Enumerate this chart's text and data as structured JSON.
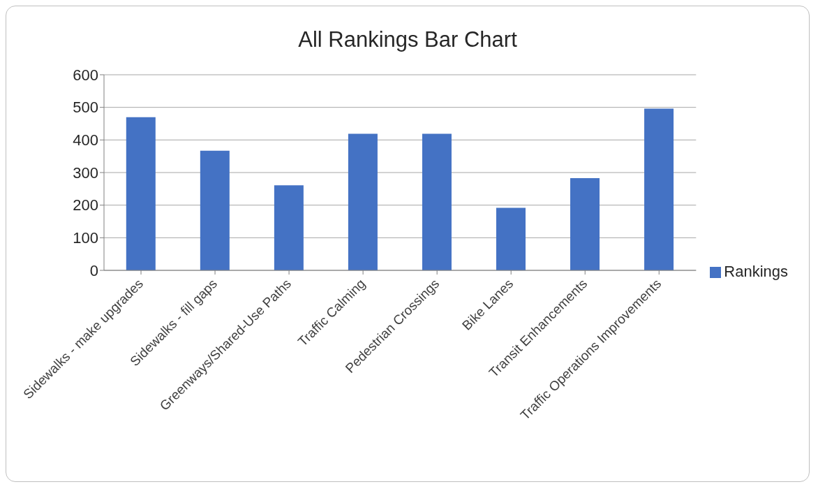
{
  "chart_data": {
    "type": "bar",
    "title": "All Rankings Bar Chart",
    "categories": [
      "Sidewalks - make upgrades",
      "Sidewalks - fill gaps",
      "Greenways/Shared-Use Paths",
      "Traffic Calming",
      "Pedestrian Crossings",
      "Bike Lanes",
      "Transit Enhancements",
      "Traffic Operations Improvements"
    ],
    "series": [
      {
        "name": "Rankings",
        "color": "#4472c4",
        "values": [
          470,
          367,
          261,
          419,
          419,
          192,
          283,
          496
        ]
      }
    ],
    "ylim": [
      0,
      600
    ],
    "yticks": [
      0,
      100,
      200,
      300,
      400,
      500,
      600
    ],
    "grid": "y",
    "legend": "right"
  }
}
